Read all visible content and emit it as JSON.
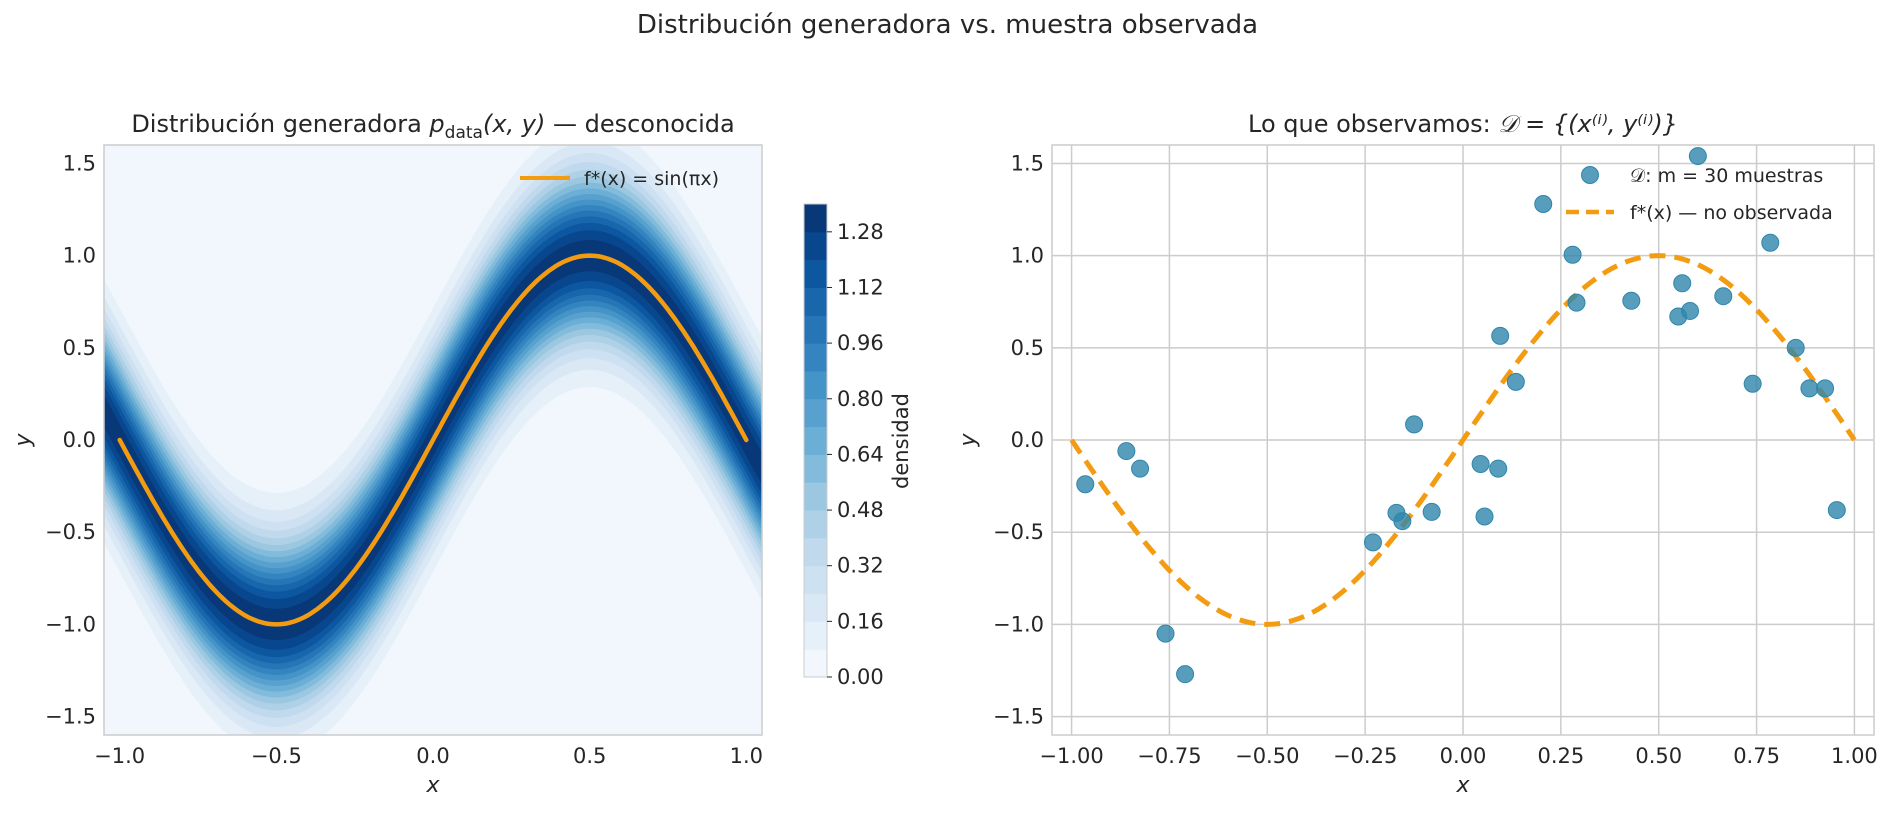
{
  "figure": {
    "suptitle": "Distribución generadora vs. muestra observada"
  },
  "colors": {
    "curve": "#F39C12",
    "points": "#2E86AB",
    "grid": "#CCCCCC",
    "density_low": "#F0F6FC",
    "density_high": "#08306B"
  },
  "chart_data": [
    {
      "type": "heatmap",
      "title_prefix": "Distribución generadora ",
      "title_math": "p",
      "title_sub": "data",
      "title_args": "(x, y)",
      "title_suffix": " — desconocida",
      "xlabel": "x",
      "ylabel": "y",
      "xlim": [
        -1.05,
        1.05
      ],
      "ylim": [
        -1.6,
        1.6
      ],
      "xticks": [
        -1.0,
        -0.5,
        0.0,
        0.5,
        1.0
      ],
      "xtick_labels": [
        "−1.0",
        "−0.5",
        "0.0",
        "0.5",
        "1.0"
      ],
      "yticks": [
        -1.5,
        -1.0,
        -0.5,
        0.0,
        0.5,
        1.0,
        1.5
      ],
      "ytick_labels": [
        "−1.5",
        "−1.0",
        "−0.5",
        "0.0",
        "0.5",
        "1.0",
        "1.5"
      ],
      "grid": false,
      "density": {
        "mean": "sin(pi x)",
        "sigma": 0.3,
        "peak": 1.33
      },
      "colorbar": {
        "label": "densidad",
        "range": [
          0.0,
          1.36
        ],
        "levels_step": 0.08,
        "tick_values": [
          0.0,
          0.16,
          0.32,
          0.48,
          0.64,
          0.8,
          0.96,
          1.12,
          1.28
        ],
        "tick_labels": [
          "0.00",
          "0.16",
          "0.32",
          "0.48",
          "0.64",
          "0.80",
          "0.96",
          "1.12",
          "1.28"
        ]
      },
      "series": [
        {
          "name": "f*(x) = sin(πx)",
          "function": "sin(pi x)",
          "x_range": [
            -1.0,
            1.0
          ],
          "style": "solid"
        }
      ],
      "legend": {
        "placement": "upper-right",
        "entries": [
          "f*(x) = sin(πx)"
        ]
      }
    },
    {
      "type": "scatter",
      "title_prefix": "Lo que observamos: ",
      "title_math": "𝒟 = {(x⁽ⁱ⁾, y⁽ⁱ⁾)}",
      "xlabel": "x",
      "ylabel": "y",
      "xlim": [
        -1.05,
        1.05
      ],
      "ylim": [
        -1.6,
        1.6
      ],
      "xticks": [
        -1.0,
        -0.75,
        -0.5,
        -0.25,
        0.0,
        0.25,
        0.5,
        0.75,
        1.0
      ],
      "xtick_labels": [
        "−1.00",
        "−0.75",
        "−0.50",
        "−0.25",
        "0.00",
        "0.25",
        "0.50",
        "0.75",
        "1.00"
      ],
      "yticks": [
        -1.5,
        -1.0,
        -0.5,
        0.0,
        0.5,
        1.0,
        1.5
      ],
      "ytick_labels": [
        "−1.5",
        "−1.0",
        "−0.5",
        "0.0",
        "0.5",
        "1.0",
        "1.5"
      ],
      "grid": true,
      "series": [
        {
          "name": "𝒟: m = 30 muestras",
          "kind": "points",
          "x": [
            -0.965,
            -0.86,
            -0.825,
            -0.76,
            -0.71,
            -0.23,
            -0.17,
            -0.155,
            -0.125,
            -0.08,
            0.045,
            0.055,
            0.09,
            0.095,
            0.135,
            0.205,
            0.28,
            0.29,
            0.43,
            0.55,
            0.56,
            0.58,
            0.6,
            0.665,
            0.74,
            0.785,
            0.85,
            0.885,
            0.925,
            0.955
          ],
          "y": [
            -0.24,
            -0.06,
            -0.155,
            -1.05,
            -1.27,
            -0.555,
            -0.395,
            -0.44,
            0.085,
            -0.39,
            -0.13,
            -0.415,
            -0.155,
            0.565,
            0.315,
            1.28,
            1.005,
            0.745,
            0.755,
            0.67,
            0.85,
            0.7,
            1.54,
            0.78,
            0.305,
            1.07,
            0.5,
            0.28,
            0.28,
            -0.38
          ]
        },
        {
          "name": "f*(x) — no observada",
          "kind": "curve",
          "function": "sin(pi x)",
          "x_range": [
            -1.0,
            1.0
          ],
          "style": "dashed"
        }
      ],
      "legend": {
        "placement": "upper-right",
        "entries": [
          "𝒟: m = 30 muestras",
          "f*(x) — no observada"
        ]
      }
    }
  ]
}
